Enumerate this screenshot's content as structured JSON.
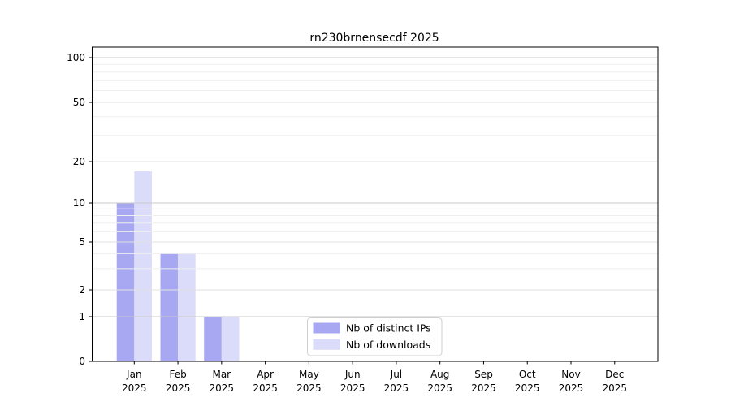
{
  "figure": {
    "title": "rn230brnensecdf 2025"
  },
  "chart_data": {
    "type": "bar",
    "title": "rn230brnensecdf 2025",
    "xlabel": "",
    "ylabel": "",
    "yscale": "symlog",
    "ylim": [
      0,
      130
    ],
    "grid": "horizontal",
    "categories": [
      "Jan 2025",
      "Feb 2025",
      "Mar 2025",
      "Apr 2025",
      "May 2025",
      "Jun 2025",
      "Jul 2025",
      "Aug 2025",
      "Sep 2025",
      "Oct 2025",
      "Nov 2025",
      "Dec 2025"
    ],
    "x_tick_labels": [
      {
        "month": "Jan",
        "year": "2025"
      },
      {
        "month": "Feb",
        "year": "2025"
      },
      {
        "month": "Mar",
        "year": "2025"
      },
      {
        "month": "Apr",
        "year": "2025"
      },
      {
        "month": "May",
        "year": "2025"
      },
      {
        "month": "Jun",
        "year": "2025"
      },
      {
        "month": "Jul",
        "year": "2025"
      },
      {
        "month": "Aug",
        "year": "2025"
      },
      {
        "month": "Sep",
        "year": "2025"
      },
      {
        "month": "Oct",
        "year": "2025"
      },
      {
        "month": "Nov",
        "year": "2025"
      },
      {
        "month": "Dec",
        "year": "2025"
      }
    ],
    "y_ticks": [
      100,
      50,
      20,
      10,
      5,
      2,
      1,
      0
    ],
    "y_minor_gridlines": [
      3,
      4,
      6,
      7,
      8,
      9,
      30,
      40,
      60,
      70,
      80,
      90
    ],
    "series": [
      {
        "name": "Nb of distinct IPs",
        "color": "#a8a8f2",
        "values": [
          10,
          4,
          1,
          0,
          0,
          0,
          0,
          0,
          0,
          0,
          0,
          0
        ]
      },
      {
        "name": "Nb of downloads",
        "color": "#dbdbfa",
        "values": [
          17,
          4,
          1,
          0,
          0,
          0,
          0,
          0,
          0,
          0,
          0,
          0
        ]
      }
    ],
    "legend": {
      "position": "lower-center-inside",
      "entries": [
        "Nb of distinct IPs",
        "Nb of downloads"
      ]
    }
  },
  "colors": {
    "bar_distinct_ips": "#a8a8f2",
    "bar_downloads": "#dbdbfa",
    "grid_major": "#c8c8c8",
    "grid_labeled_minor": "#e2e2e2",
    "grid_minor": "#efefef",
    "axis": "#000000",
    "legend_border": "#cfcfcf",
    "background": "#ffffff"
  }
}
